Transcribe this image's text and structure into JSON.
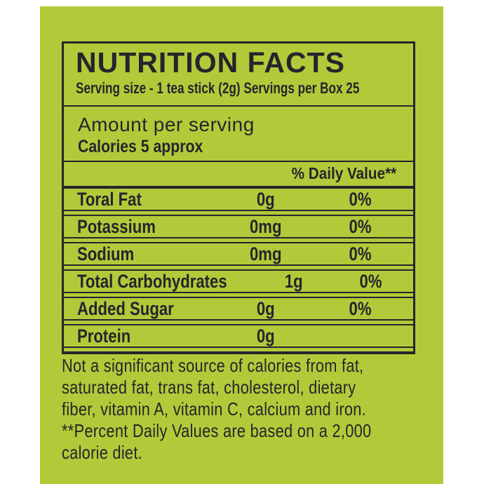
{
  "colors": {
    "page_background": "#ffffff",
    "panel_green": "#b2ca39",
    "ink": "#24252c"
  },
  "label": {
    "title": "NUTRITION FACTS",
    "serving_line": "Serving size - 1 tea stick (2g) Servings per Box 25",
    "amount_heading": "Amount per serving",
    "calories_line": "Calories 5 approx",
    "daily_value_header": "% Daily Value**",
    "rows": [
      {
        "name": "Toral Fat",
        "amount": "0g",
        "dv": "0%"
      },
      {
        "name": "Potassium",
        "amount": "0mg",
        "dv": "0%"
      },
      {
        "name": "Sodium",
        "amount": "0mg",
        "dv": "0%"
      },
      {
        "name": "Total Carbohydrates",
        "amount": "1g",
        "dv": "0%"
      },
      {
        "name": "Added Sugar",
        "amount": "0g",
        "dv": "0%"
      },
      {
        "name": "Protein",
        "amount": "0g",
        "dv": ""
      }
    ],
    "footnote_lines": [
      "Not a significant source of calories from fat,",
      "saturated fat, trans fat, cholesterol, dietary",
      "fiber, vitamin A, vitamin C, calcium and iron.",
      "**Percent Daily Values are based on a 2,000",
      "calorie diet."
    ]
  }
}
